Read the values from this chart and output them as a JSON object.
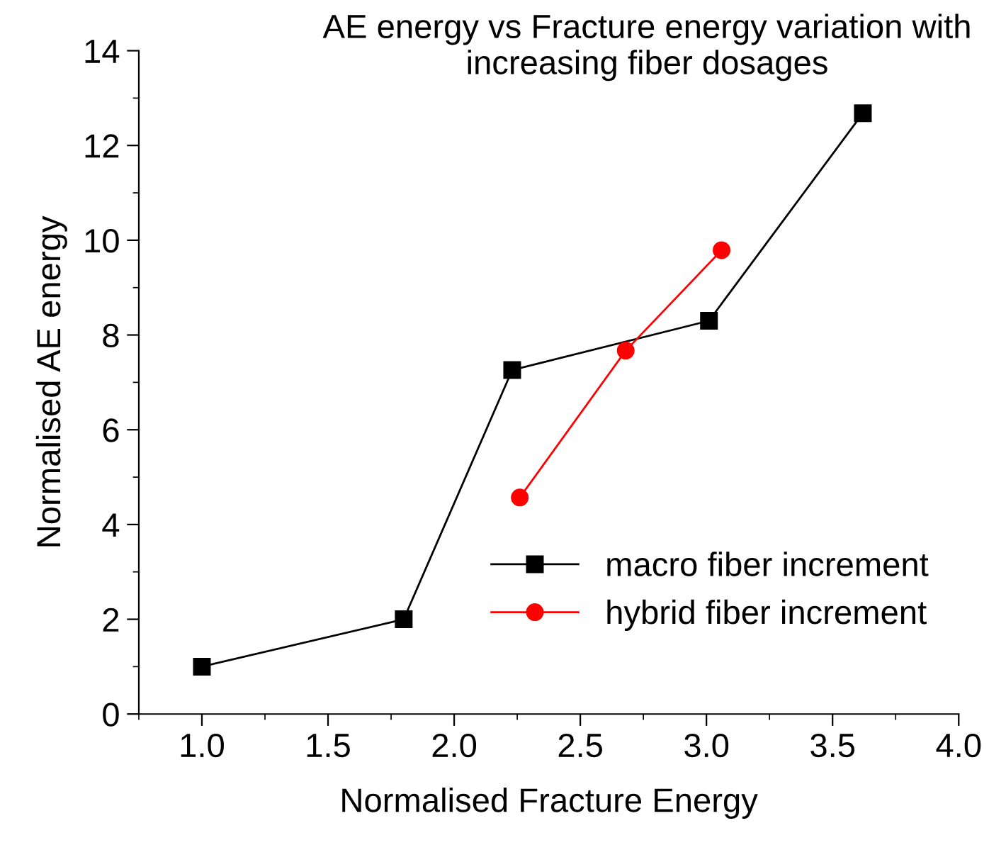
{
  "chart_data": {
    "type": "line",
    "title": "AE energy vs Fracture energy variation with\nincreasing fiber dosages",
    "xlabel": "Normalised Fracture Energy",
    "ylabel": "Normalised AE energy",
    "series": [
      {
        "name": "macro fiber increment",
        "color": "#000000",
        "marker": "square",
        "x": [
          1.0,
          1.8,
          2.23,
          3.01,
          3.62
        ],
        "values": [
          1.0,
          2.0,
          7.26,
          8.3,
          12.68
        ]
      },
      {
        "name": "hybrid fiber increment",
        "color": "#ff0000",
        "marker": "circle",
        "x": [
          2.26,
          2.68,
          3.06
        ],
        "values": [
          4.57,
          7.67,
          9.79
        ]
      }
    ],
    "xlim": [
      0.75,
      4.0
    ],
    "xticks": [
      {
        "value": 1,
        "label": "1.0"
      },
      {
        "value": 1.5,
        "label": "1.5"
      },
      {
        "value": 2,
        "label": "2.0"
      },
      {
        "value": 2.5,
        "label": "2.5"
      },
      {
        "value": 3,
        "label": "3.0"
      },
      {
        "value": 3.5,
        "label": "3.5"
      },
      {
        "value": 4,
        "label": "4.0"
      }
    ],
    "ylim": [
      0,
      14
    ],
    "yticks": [
      0,
      2,
      4,
      6,
      8,
      10,
      12,
      14
    ],
    "grid": false,
    "legend": "bottom right",
    "line_style": "solid"
  }
}
